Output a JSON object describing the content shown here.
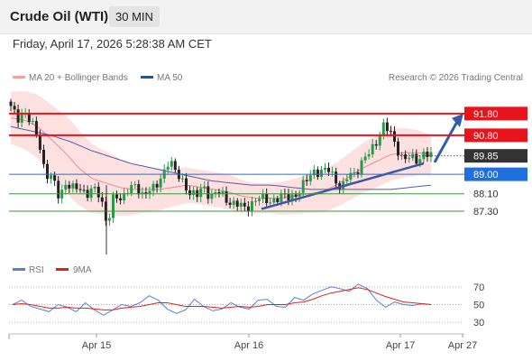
{
  "header": {
    "title": "Crude Oil (WTI)",
    "timeframe": "30 MIN"
  },
  "timestamp": "Friday, April 17, 2026 5:28:38 AM CET",
  "legend": {
    "ma20": "MA 20 + Bollinger Bands",
    "ma50": "MA 50",
    "credit": "Research © 2026 Trading Central"
  },
  "rsi_legend": {
    "rsi": "RSI",
    "ma": "9MA"
  },
  "colors": {
    "resistance": "#e8141b",
    "pivot": "#1f6fde",
    "support": "#3a9a3a",
    "current": "#333333",
    "up": "#2a9a4a",
    "down": "#222222",
    "bollinger": "#fde1e1",
    "ma20": "#ef8a8a",
    "ma50": "#5a5aa8",
    "trendline": "#3f56a8",
    "rsi": "#5a7fd8",
    "rsi_ma": "#e02020"
  },
  "chart_data": [
    {
      "type": "candlestick",
      "name": "price",
      "x_tick_labels": [
        "Apr 15",
        "Apr 16",
        "Apr 17",
        "Apr 27"
      ],
      "ylim": [
        85.3,
        93.0
      ],
      "levels": [
        {
          "value": 91.8,
          "label": "91.80",
          "kind": "resistance"
        },
        {
          "value": 90.8,
          "label": "90.80",
          "kind": "resistance"
        },
        {
          "value": 89.85,
          "label": "89.85",
          "kind": "current"
        },
        {
          "value": 89.0,
          "label": "89.00",
          "kind": "pivot"
        },
        {
          "value": 88.1,
          "label": "88.10",
          "kind": "support"
        },
        {
          "value": 87.3,
          "label": "87.30",
          "kind": "support"
        }
      ],
      "forecast": {
        "from": 89.55,
        "to": 91.8,
        "direction": "up"
      },
      "trendline": {
        "from": 87.4,
        "to": 89.5
      },
      "anchors": [
        92.05,
        91.6,
        91.9,
        91.3,
        90.7,
        89.0,
        88.8,
        88.0,
        88.6,
        88.3,
        88.4,
        88.1,
        88.3,
        88.0,
        86.7,
        88.0,
        87.8,
        88.4,
        88.4,
        88.0,
        88.4,
        88.3,
        88.9,
        89.8,
        89.0,
        88.6,
        88.2,
        88.0,
        88.4,
        88.0,
        88.2,
        87.9,
        87.7,
        87.6,
        87.4,
        87.7,
        87.9,
        87.8,
        87.8,
        87.9,
        88.0,
        88.0,
        88.2,
        88.8,
        89.2,
        89.0,
        89.3,
        88.9,
        88.2,
        89.0,
        89.1,
        89.5,
        90.0,
        90.5,
        91.2,
        91.0,
        90.3,
        89.6,
        89.8,
        89.7,
        89.9,
        89.85
      ],
      "candles": 116,
      "ma20": [
        91.6,
        91.5,
        91.2,
        90.6,
        90.0,
        89.3,
        88.8,
        88.6,
        88.4,
        88.3,
        88.3,
        88.3,
        88.4,
        88.5,
        88.4,
        88.3,
        88.2,
        88.0,
        87.9,
        87.9,
        87.9,
        88.0,
        88.1,
        88.2,
        88.5,
        88.9,
        89.3,
        89.6,
        89.9,
        90.0,
        90.0,
        89.9
      ],
      "ma50": [
        91.2,
        91.0,
        90.8,
        90.5,
        90.1,
        89.8,
        89.5,
        89.3,
        89.1,
        88.9,
        88.7,
        88.6,
        88.5,
        88.5,
        88.4,
        88.3,
        88.3,
        88.3,
        88.3,
        88.3,
        88.4,
        88.5
      ],
      "bb_width": [
        1.2,
        1.4,
        1.6,
        1.8,
        1.6,
        1.4,
        1.2,
        1.0,
        0.9,
        0.8,
        0.8,
        0.8,
        0.7,
        0.7,
        0.8,
        0.9,
        1.0,
        1.1,
        1.2,
        1.2,
        1.1,
        0.9
      ],
      "source": "Trading Central"
    },
    {
      "type": "line",
      "name": "RSI",
      "ylim": [
        20,
        80
      ],
      "y_ticks": [
        70,
        50,
        30
      ],
      "series": [
        {
          "name": "RSI",
          "values": [
            50,
            55,
            48,
            45,
            42,
            50,
            47,
            42,
            52,
            44,
            38,
            44,
            50,
            48,
            52,
            60,
            55,
            45,
            40,
            44,
            56,
            48,
            43,
            45,
            52,
            47,
            45,
            55,
            56,
            48,
            47,
            58,
            55,
            62,
            66,
            70,
            68,
            65,
            73,
            68,
            55,
            47,
            53,
            50,
            49,
            51,
            50
          ]
        },
        {
          "name": "9MA",
          "values": [
            50,
            51,
            50,
            48,
            46,
            46,
            47,
            46,
            46,
            45,
            44,
            44,
            46,
            47,
            48,
            50,
            52,
            52,
            50,
            48,
            48,
            48,
            47,
            46,
            47,
            48,
            47,
            48,
            50,
            50,
            50,
            52,
            53,
            56,
            60,
            63,
            65,
            67,
            69,
            67,
            63,
            59,
            56,
            53,
            52,
            51,
            50
          ]
        }
      ]
    }
  ]
}
